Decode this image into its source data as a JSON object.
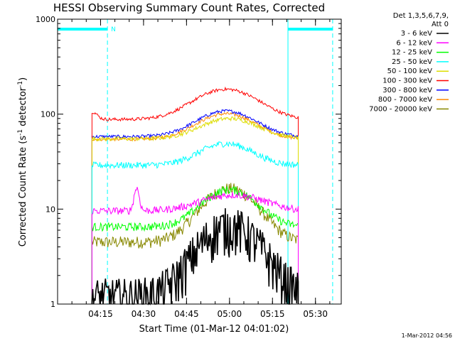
{
  "chart_data": {
    "type": "line",
    "title": "HESSI Observing Summary Count Rates, Corrected",
    "xlabel": "Start Time (01-Mar-12 04:01:02)",
    "ylabel_prefix": "Corrected Count Rate (s",
    "ylabel_mid": " detector",
    "ylabel_suffix": ")",
    "ylabel_exp": "-1",
    "yscale": "log",
    "xlim": [
      4.0,
      5.65
    ],
    "ylim": [
      1,
      1000
    ],
    "x_ticks": [
      {
        "label": "04:15",
        "value": 4.25
      },
      {
        "label": "04:30",
        "value": 4.5
      },
      {
        "label": "04:45",
        "value": 4.75
      },
      {
        "label": "05:00",
        "value": 5.0
      },
      {
        "label": "05:15",
        "value": 5.25
      },
      {
        "label": "05:30",
        "value": 5.5
      }
    ],
    "y_ticks": [
      {
        "label": "1",
        "value": 1
      },
      {
        "label": "10",
        "value": 10
      },
      {
        "label": "100",
        "value": 100
      },
      {
        "label": "1000",
        "value": 1000
      }
    ],
    "legend": {
      "placement": "right",
      "header": [
        "Det 1,3,5,6,7,9,",
        "Att 0"
      ]
    },
    "series": [
      {
        "name": "3 - 6 keV",
        "color": "#000000"
      },
      {
        "name": "6 - 12 keV",
        "color": "#ff00ff"
      },
      {
        "name": "12 - 25 keV",
        "color": "#00ff00"
      },
      {
        "name": "25 - 50 keV",
        "color": "#00ffff"
      },
      {
        "name": "50 - 100 keV",
        "color": "#dddd00"
      },
      {
        "name": "100 - 300 keV",
        "color": "#ff0000"
      },
      {
        "name": "300 - 800 keV",
        "color": "#0000ff"
      },
      {
        "name": "800 - 7000 keV",
        "color": "#ff8800"
      },
      {
        "name": "7000 - 20000 keV",
        "color": "#888800"
      }
    ],
    "night_bars": [
      {
        "x_start": 4.0,
        "x_end": 4.29
      },
      {
        "x_start": 5.34,
        "x_end": 5.6
      }
    ],
    "saa_marker": "N"
  },
  "footer": {
    "timestamp": "1-Mar-2012 04:56"
  }
}
